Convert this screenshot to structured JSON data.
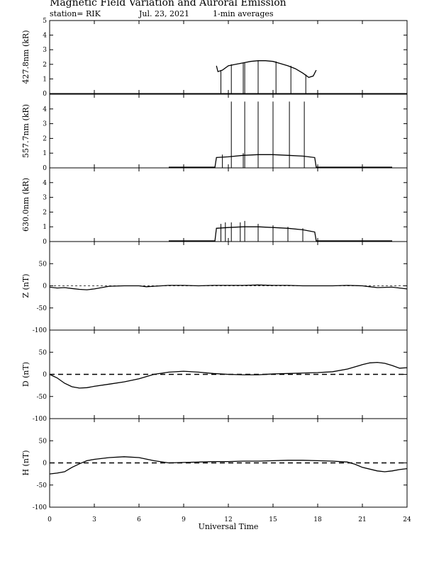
{
  "header": {
    "title": "Magnetic Field Variation and Auroral Emission",
    "station": "station= RIK",
    "date": "Jul. 23, 2021",
    "averaging": "1-min averages"
  },
  "colors": {
    "line": "#000000",
    "background": "#ffffff"
  },
  "chart_data": [
    {
      "type": "line",
      "ylabel": "427.8nm (kR)",
      "xlim": [
        0,
        24
      ],
      "ylim": [
        0,
        5
      ],
      "yticks": [
        0,
        1,
        2,
        3,
        4,
        5
      ],
      "ytick_labels": [
        "0",
        "1",
        "2",
        "3",
        "4",
        "5"
      ],
      "zero_line": false,
      "x": [
        11.2,
        11.3,
        11.6,
        12.0,
        12.5,
        13.0,
        13.5,
        14.0,
        14.5,
        15.0,
        15.5,
        16.0,
        16.5,
        17.0,
        17.4,
        17.7,
        17.9
      ],
      "y": [
        1.9,
        1.5,
        1.6,
        1.9,
        2.0,
        2.1,
        2.2,
        2.25,
        2.25,
        2.2,
        2.05,
        1.9,
        1.7,
        1.4,
        1.1,
        1.2,
        1.6
      ],
      "spikes": [
        {
          "x": 11.5,
          "y": 1.6
        },
        {
          "x": 12.2,
          "y": 2.0
        },
        {
          "x": 13.0,
          "y": 2.1
        },
        {
          "x": 13.1,
          "y": 2.1
        },
        {
          "x": 14.0,
          "y": 2.25
        },
        {
          "x": 15.2,
          "y": 2.2
        },
        {
          "x": 16.2,
          "y": 1.9
        },
        {
          "x": 17.2,
          "y": 1.3
        }
      ]
    },
    {
      "type": "line",
      "ylabel": "557.7nm (kR)",
      "xlim": [
        0,
        24
      ],
      "ylim": [
        0,
        5
      ],
      "yticks": [
        0,
        1,
        2,
        3,
        4
      ],
      "ytick_labels": [
        "0",
        "1",
        "2",
        "3",
        "4"
      ],
      "zero_line": false,
      "x": [
        8.0,
        11.1,
        11.2,
        12.0,
        13.0,
        14.0,
        15.0,
        16.0,
        17.0,
        17.8,
        17.9,
        23.0
      ],
      "y": [
        0.05,
        0.05,
        0.7,
        0.75,
        0.85,
        0.9,
        0.9,
        0.85,
        0.8,
        0.7,
        0.05,
        0.05
      ],
      "spikes": [
        {
          "x": 12.2,
          "y": 4.5
        },
        {
          "x": 13.1,
          "y": 4.5
        },
        {
          "x": 14.0,
          "y": 4.5
        },
        {
          "x": 15.0,
          "y": 4.5
        },
        {
          "x": 16.1,
          "y": 4.5
        },
        {
          "x": 17.1,
          "y": 4.5
        },
        {
          "x": 11.6,
          "y": 0.9
        },
        {
          "x": 13.0,
          "y": 1.0
        }
      ]
    },
    {
      "type": "line",
      "ylabel": "630.0nm (kR)",
      "xlim": [
        0,
        24
      ],
      "ylim": [
        0,
        5
      ],
      "yticks": [
        0,
        1,
        2,
        3,
        4
      ],
      "ytick_labels": [
        "0",
        "1",
        "2",
        "3",
        "4"
      ],
      "zero_line": false,
      "x": [
        8.0,
        11.1,
        11.2,
        12.0,
        13.0,
        14.0,
        15.0,
        16.0,
        17.0,
        17.8,
        17.9,
        23.0
      ],
      "y": [
        0.05,
        0.05,
        0.9,
        0.95,
        1.0,
        1.0,
        0.95,
        0.9,
        0.8,
        0.65,
        0.05,
        0.05
      ],
      "spikes": [
        {
          "x": 11.5,
          "y": 1.2
        },
        {
          "x": 11.8,
          "y": 1.3
        },
        {
          "x": 12.2,
          "y": 1.3
        },
        {
          "x": 12.8,
          "y": 1.3
        },
        {
          "x": 13.1,
          "y": 1.4
        },
        {
          "x": 14.0,
          "y": 1.2
        },
        {
          "x": 15.0,
          "y": 1.1
        },
        {
          "x": 16.0,
          "y": 1.0
        },
        {
          "x": 17.0,
          "y": 0.9
        }
      ]
    },
    {
      "type": "line",
      "ylabel": "Z (nT)",
      "xlim": [
        0,
        24
      ],
      "ylim": [
        -100,
        100
      ],
      "yticks": [
        -100,
        -50,
        0,
        50
      ],
      "ytick_labels": [
        "-100",
        "-50",
        "0",
        "50"
      ],
      "zero_line": true,
      "x": [
        0,
        0.5,
        1.0,
        1.5,
        2.0,
        2.5,
        3.0,
        3.5,
        4.0,
        5.0,
        6.0,
        6.5,
        7.0,
        8.0,
        9.0,
        10.0,
        11.0,
        12.0,
        13.0,
        14.0,
        15.0,
        16.0,
        17.0,
        18.0,
        19.0,
        20.0,
        21.0,
        21.5,
        22.0,
        23.0,
        24.0
      ],
      "y": [
        -3,
        -5,
        -4,
        -6,
        -8,
        -9,
        -7,
        -4,
        -1,
        0,
        0,
        -2,
        -1,
        1,
        1,
        0,
        1,
        1,
        1,
        2,
        1,
        1,
        0,
        0,
        0,
        1,
        0,
        -2,
        -4,
        -3,
        -7
      ]
    },
    {
      "type": "line",
      "ylabel": "D (nT)",
      "xlim": [
        0,
        24
      ],
      "ylim": [
        -100,
        100
      ],
      "yticks": [
        -100,
        -50,
        0,
        50
      ],
      "ytick_labels": [
        "-100",
        "-50",
        "0",
        "50"
      ],
      "zero_line": true,
      "x": [
        0,
        0.5,
        1.0,
        1.5,
        2.0,
        2.5,
        3.0,
        4.0,
        5.0,
        6.0,
        7.0,
        8.0,
        9.0,
        10.0,
        11.0,
        12.0,
        13.0,
        14.0,
        15.0,
        16.0,
        17.0,
        18.0,
        19.0,
        20.0,
        21.0,
        21.5,
        22.0,
        22.5,
        23.0,
        23.5,
        24.0
      ],
      "y": [
        0,
        -8,
        -20,
        -28,
        -31,
        -30,
        -27,
        -22,
        -17,
        -10,
        0,
        5,
        7,
        5,
        2,
        0,
        -1,
        -1,
        1,
        2,
        3,
        4,
        6,
        12,
        22,
        26,
        27,
        25,
        20,
        14,
        15
      ]
    },
    {
      "type": "line",
      "ylabel": "H (nT)",
      "xlim": [
        0,
        24
      ],
      "ylim": [
        -100,
        100
      ],
      "yticks": [
        -100,
        -50,
        0,
        50
      ],
      "ytick_labels": [
        "-100",
        "-50",
        "0",
        "50"
      ],
      "zero_line": true,
      "x": [
        0,
        0.5,
        1.0,
        1.5,
        2.0,
        2.5,
        3.0,
        4.0,
        5.0,
        6.0,
        7.0,
        8.0,
        9.0,
        10.0,
        11.0,
        12.0,
        13.0,
        14.0,
        15.0,
        16.0,
        17.0,
        18.0,
        19.0,
        20.0,
        20.5,
        21.0,
        22.0,
        22.5,
        23.0,
        23.5,
        24.0
      ],
      "y": [
        -25,
        -23,
        -20,
        -10,
        -2,
        5,
        8,
        12,
        14,
        12,
        5,
        0,
        1,
        2,
        3,
        3,
        4,
        4,
        5,
        6,
        6,
        5,
        4,
        2,
        -3,
        -10,
        -18,
        -20,
        -18,
        -15,
        -13
      ]
    }
  ],
  "xaxis": {
    "label": "Universal Time",
    "ticks": [
      0,
      3,
      6,
      9,
      12,
      15,
      18,
      21,
      24
    ],
    "tick_labels": [
      "0",
      "3",
      "6",
      "9",
      "12",
      "15",
      "18",
      "21",
      "24"
    ]
  }
}
